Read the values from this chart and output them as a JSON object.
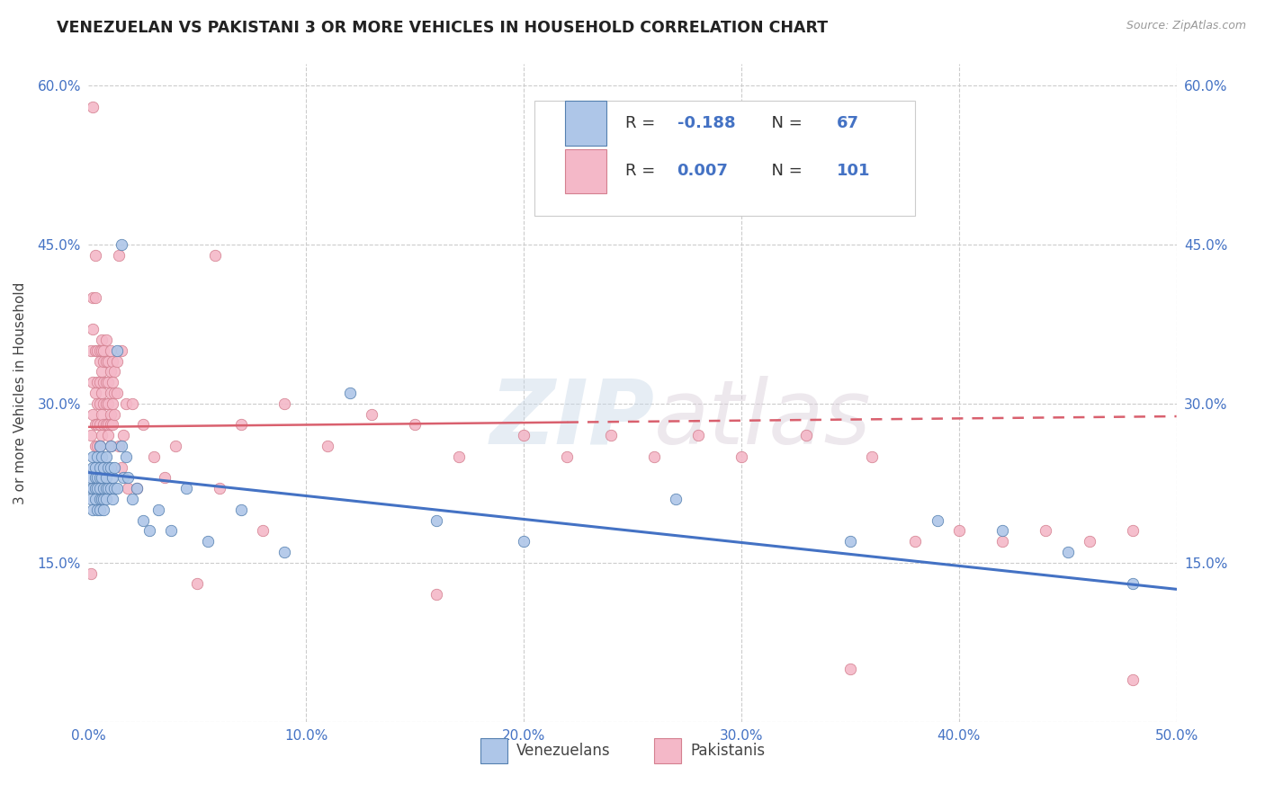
{
  "title": "VENEZUELAN VS PAKISTANI 3 OR MORE VEHICLES IN HOUSEHOLD CORRELATION CHART",
  "source": "Source: ZipAtlas.com",
  "xlabel_venezuelans": "Venezuelans",
  "xlabel_pakistanis": "Pakistanis",
  "ylabel": "3 or more Vehicles in Household",
  "xlim": [
    0.0,
    0.5
  ],
  "ylim": [
    0.0,
    0.62
  ],
  "xticks": [
    0.0,
    0.1,
    0.2,
    0.3,
    0.4,
    0.5
  ],
  "yticks": [
    0.0,
    0.15,
    0.3,
    0.45,
    0.6
  ],
  "xtick_labels": [
    "0.0%",
    "10.0%",
    "20.0%",
    "30.0%",
    "40.0%",
    "50.0%"
  ],
  "ytick_labels": [
    "",
    "15.0%",
    "30.0%",
    "45.0%",
    "60.0%"
  ],
  "venezuelan_color": "#aec6e8",
  "pakistani_color": "#f4b8c8",
  "trend_venezuelan_color": "#4472c4",
  "trend_pakistani_color": "#d9606e",
  "R_venezuelan": -0.188,
  "N_venezuelan": 67,
  "R_pakistani": 0.007,
  "N_pakistani": 101,
  "ven_trend_x0": 0.0,
  "ven_trend_y0": 0.235,
  "ven_trend_x1": 0.5,
  "ven_trend_y1": 0.125,
  "pak_trend_x0": 0.0,
  "pak_trend_y0": 0.278,
  "pak_trend_x1": 0.5,
  "pak_trend_y1": 0.288,
  "venezuelan_x": [
    0.001,
    0.001,
    0.001,
    0.002,
    0.002,
    0.002,
    0.002,
    0.003,
    0.003,
    0.003,
    0.003,
    0.004,
    0.004,
    0.004,
    0.004,
    0.005,
    0.005,
    0.005,
    0.005,
    0.005,
    0.005,
    0.006,
    0.006,
    0.006,
    0.007,
    0.007,
    0.007,
    0.007,
    0.008,
    0.008,
    0.008,
    0.008,
    0.009,
    0.009,
    0.01,
    0.01,
    0.01,
    0.011,
    0.011,
    0.012,
    0.012,
    0.013,
    0.013,
    0.015,
    0.015,
    0.016,
    0.017,
    0.018,
    0.02,
    0.022,
    0.025,
    0.028,
    0.032,
    0.038,
    0.045,
    0.055,
    0.07,
    0.09,
    0.12,
    0.16,
    0.2,
    0.27,
    0.35,
    0.39,
    0.42,
    0.45,
    0.48
  ],
  "venezuelan_y": [
    0.22,
    0.21,
    0.23,
    0.24,
    0.22,
    0.2,
    0.25,
    0.23,
    0.22,
    0.24,
    0.21,
    0.25,
    0.23,
    0.22,
    0.2,
    0.26,
    0.24,
    0.23,
    0.22,
    0.21,
    0.2,
    0.25,
    0.23,
    0.21,
    0.24,
    0.22,
    0.21,
    0.2,
    0.25,
    0.23,
    0.22,
    0.21,
    0.24,
    0.22,
    0.26,
    0.24,
    0.22,
    0.23,
    0.21,
    0.24,
    0.22,
    0.35,
    0.22,
    0.45,
    0.26,
    0.23,
    0.25,
    0.23,
    0.21,
    0.22,
    0.19,
    0.18,
    0.2,
    0.18,
    0.22,
    0.17,
    0.2,
    0.16,
    0.31,
    0.19,
    0.17,
    0.21,
    0.17,
    0.19,
    0.18,
    0.16,
    0.13
  ],
  "pakistani_x": [
    0.001,
    0.001,
    0.001,
    0.002,
    0.002,
    0.002,
    0.002,
    0.002,
    0.003,
    0.003,
    0.003,
    0.003,
    0.003,
    0.004,
    0.004,
    0.004,
    0.004,
    0.004,
    0.005,
    0.005,
    0.005,
    0.005,
    0.005,
    0.005,
    0.006,
    0.006,
    0.006,
    0.006,
    0.006,
    0.006,
    0.007,
    0.007,
    0.007,
    0.007,
    0.007,
    0.008,
    0.008,
    0.008,
    0.008,
    0.008,
    0.009,
    0.009,
    0.009,
    0.009,
    0.009,
    0.01,
    0.01,
    0.01,
    0.01,
    0.01,
    0.01,
    0.011,
    0.011,
    0.011,
    0.011,
    0.012,
    0.012,
    0.012,
    0.013,
    0.013,
    0.014,
    0.014,
    0.015,
    0.015,
    0.016,
    0.017,
    0.018,
    0.02,
    0.022,
    0.025,
    0.03,
    0.035,
    0.04,
    0.05,
    0.06,
    0.07,
    0.09,
    0.11,
    0.13,
    0.15,
    0.17,
    0.2,
    0.22,
    0.24,
    0.26,
    0.28,
    0.3,
    0.33,
    0.36,
    0.38,
    0.4,
    0.42,
    0.44,
    0.46,
    0.48,
    0.003,
    0.058,
    0.08,
    0.16,
    0.35,
    0.48
  ],
  "pakistani_y": [
    0.14,
    0.27,
    0.35,
    0.58,
    0.4,
    0.37,
    0.32,
    0.29,
    0.35,
    0.4,
    0.31,
    0.28,
    0.26,
    0.35,
    0.32,
    0.3,
    0.28,
    0.26,
    0.35,
    0.34,
    0.32,
    0.3,
    0.28,
    0.26,
    0.36,
    0.35,
    0.33,
    0.31,
    0.29,
    0.27,
    0.35,
    0.34,
    0.32,
    0.3,
    0.28,
    0.36,
    0.34,
    0.32,
    0.3,
    0.28,
    0.34,
    0.32,
    0.3,
    0.28,
    0.27,
    0.35,
    0.33,
    0.31,
    0.29,
    0.28,
    0.26,
    0.34,
    0.32,
    0.3,
    0.28,
    0.33,
    0.31,
    0.29,
    0.34,
    0.31,
    0.44,
    0.26,
    0.35,
    0.24,
    0.27,
    0.3,
    0.22,
    0.3,
    0.22,
    0.28,
    0.25,
    0.23,
    0.26,
    0.13,
    0.22,
    0.28,
    0.3,
    0.26,
    0.29,
    0.28,
    0.25,
    0.27,
    0.25,
    0.27,
    0.25,
    0.27,
    0.25,
    0.27,
    0.25,
    0.17,
    0.18,
    0.17,
    0.18,
    0.17,
    0.18,
    0.44,
    0.44,
    0.18,
    0.12,
    0.05,
    0.04
  ]
}
